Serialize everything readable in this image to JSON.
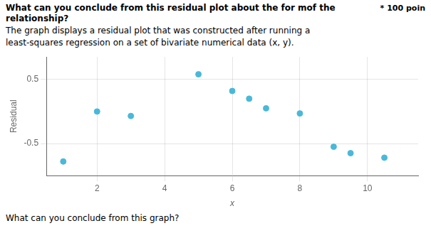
{
  "chart_data": {
    "type": "scatter",
    "title": [
      "What can you conclude from this residual plot about the for mof the",
      "relationship?"
    ],
    "subtitle": [
      "The graph displays a residual plot that was constructed after running a",
      "least-squares regression on a set of bivariate numerical data (x, y)."
    ],
    "annotations": [
      "* 100 poin",
      "What can you conclude from this graph?"
    ],
    "x_label": "x",
    "y_label": "Residual",
    "x": [
      1,
      2,
      3,
      5,
      6,
      6.5,
      7,
      8,
      9,
      9.5,
      10.5
    ],
    "values": [
      -0.78,
      0.0,
      -0.07,
      0.58,
      0.32,
      0.2,
      0.05,
      -0.03,
      -0.55,
      -0.65,
      -0.72
    ],
    "color": "#4ab8d8",
    "marker": "circle",
    "xlim": [
      0.5,
      11.5
    ],
    "ylim": [
      -1.0,
      0.85
    ],
    "xticks": [
      2,
      4,
      6,
      8,
      10
    ],
    "yticks": [
      -0.5,
      0.5
    ],
    "grid": true
  }
}
